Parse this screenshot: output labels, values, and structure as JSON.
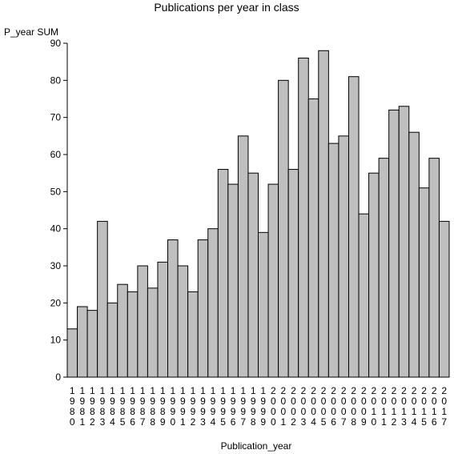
{
  "chart_data": {
    "type": "bar",
    "title": "Publications per year in class",
    "ylabel": "P_year SUM",
    "xlabel": "Publication_year",
    "ylim": [
      0,
      90
    ],
    "yticks": [
      0,
      10,
      20,
      30,
      40,
      50,
      60,
      70,
      80,
      90
    ],
    "grid": false,
    "categories": [
      "1980",
      "1981",
      "1982",
      "1983",
      "1984",
      "1985",
      "1986",
      "1987",
      "1988",
      "1989",
      "1990",
      "1991",
      "1992",
      "1993",
      "1994",
      "1995",
      "1996",
      "1997",
      "1998",
      "1999",
      "2000",
      "2001",
      "2002",
      "2003",
      "2004",
      "2005",
      "2006",
      "2007",
      "2008",
      "2009",
      "2010",
      "2011",
      "2012",
      "2013",
      "2014",
      "2015",
      "2016",
      "2017"
    ],
    "values": [
      13,
      19,
      18,
      42,
      20,
      25,
      23,
      30,
      24,
      31,
      37,
      30,
      23,
      37,
      40,
      56,
      52,
      65,
      55,
      39,
      52,
      80,
      56,
      86,
      75,
      88,
      63,
      65,
      81,
      44,
      55,
      59,
      72,
      73,
      66,
      51,
      59,
      42
    ],
    "bar_color": "#bfbfbf"
  }
}
